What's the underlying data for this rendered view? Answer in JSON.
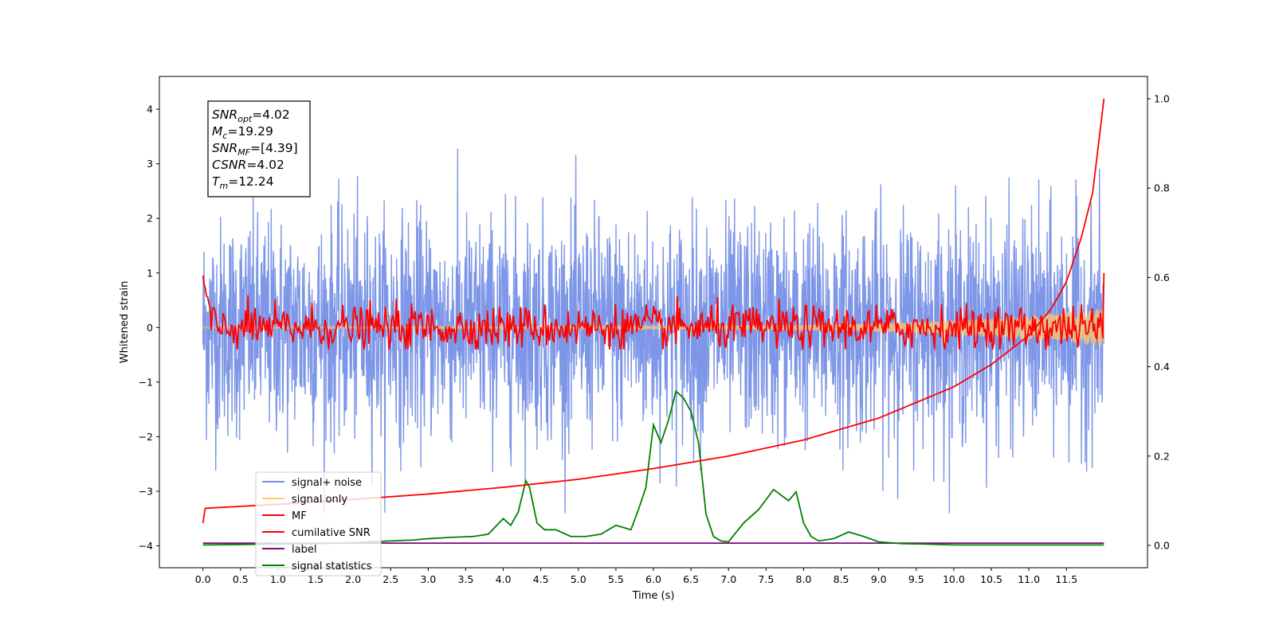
{
  "chart_data": {
    "type": "line",
    "xlabel": "Time (s)",
    "ylabel": "Whitened strain",
    "xlim": [
      -0.58,
      12.58
    ],
    "ylim_left": [
      -4.4,
      4.6
    ],
    "ylim_right": [
      -0.05,
      1.05
    ],
    "x_ticks": [
      "0.0",
      "0.5",
      "1.0",
      "1.5",
      "2.0",
      "2.5",
      "3.0",
      "3.5",
      "4.0",
      "4.5",
      "5.0",
      "5.5",
      "6.0",
      "6.5",
      "7.0",
      "7.5",
      "8.0",
      "8.5",
      "9.0",
      "9.5",
      "10.0",
      "10.5",
      "11.0",
      "11.5"
    ],
    "y_ticks_left": [
      4,
      3,
      2,
      1,
      0,
      -1,
      -2,
      -3,
      -4
    ],
    "y_ticks_right": [
      "0.0",
      "0.2",
      "0.4",
      "0.6",
      "0.8",
      "1.0"
    ],
    "annotation": {
      "snr_opt": "4.02",
      "mc": "19.29",
      "snr_mf": "[4.39]",
      "csnr": "4.02",
      "tm": "12.24"
    },
    "legend_placement": "lower-left",
    "series": [
      {
        "name": "signal+ noise",
        "color": "#7690e6",
        "axis": "left",
        "style": "noise",
        "x_range": [
          0,
          12
        ],
        "std": 1.0,
        "min_approx": -3.4,
        "max_approx": 4.2
      },
      {
        "name": "signal only",
        "color": "#ffc76e",
        "axis": "left",
        "style": "chirp",
        "x_range": [
          0,
          12
        ],
        "amplitude_start": 0.02,
        "amplitude_end": 0.35
      },
      {
        "name": "MF",
        "color": "#ff0000",
        "axis": "left",
        "style": "noise",
        "x_range": [
          0,
          12
        ],
        "start": 0.95,
        "std": 0.2,
        "min_approx": -0.4,
        "max_approx": 0.8,
        "end": 1.0
      },
      {
        "name": "cumilative SNR",
        "color": "#ff0000",
        "axis": "right",
        "x": [
          0.0,
          0.02,
          1,
          2,
          3,
          4,
          5,
          6,
          7,
          8,
          9,
          10,
          10.5,
          11,
          11.3,
          11.5,
          11.7,
          11.85,
          12.0
        ],
        "y": [
          0.05,
          0.083,
          0.092,
          0.103,
          0.115,
          0.13,
          0.148,
          0.172,
          0.2,
          0.236,
          0.285,
          0.355,
          0.405,
          0.47,
          0.53,
          0.59,
          0.69,
          0.79,
          1.0
        ]
      },
      {
        "name": "label",
        "color": "#7b0a7b",
        "axis": "left",
        "x": [
          0,
          12
        ],
        "y": [
          -3.95,
          -3.95
        ]
      },
      {
        "name": "signal statistics",
        "color": "#008000",
        "axis": "right",
        "x": [
          0.0,
          0.5,
          1.0,
          1.5,
          2.0,
          2.5,
          2.8,
          3.0,
          3.3,
          3.6,
          3.8,
          4.0,
          4.1,
          4.2,
          4.3,
          4.35,
          4.45,
          4.55,
          4.7,
          4.9,
          5.1,
          5.3,
          5.5,
          5.6,
          5.7,
          5.8,
          5.9,
          6.0,
          6.1,
          6.2,
          6.3,
          6.4,
          6.5,
          6.6,
          6.7,
          6.8,
          6.9,
          7.0,
          7.2,
          7.4,
          7.6,
          7.8,
          7.9,
          8.0,
          8.1,
          8.2,
          8.4,
          8.6,
          8.8,
          9.0,
          9.3,
          9.6,
          10.0,
          10.5,
          11.0,
          11.5,
          12.0
        ],
        "y": [
          0.001,
          0.002,
          0.003,
          0.004,
          0.006,
          0.01,
          0.012,
          0.015,
          0.018,
          0.02,
          0.025,
          0.06,
          0.045,
          0.075,
          0.145,
          0.13,
          0.05,
          0.035,
          0.035,
          0.02,
          0.02,
          0.025,
          0.045,
          0.04,
          0.035,
          0.08,
          0.13,
          0.27,
          0.23,
          0.28,
          0.345,
          0.33,
          0.3,
          0.23,
          0.07,
          0.02,
          0.01,
          0.008,
          0.05,
          0.08,
          0.125,
          0.1,
          0.12,
          0.05,
          0.02,
          0.01,
          0.015,
          0.03,
          0.02,
          0.008,
          0.004,
          0.003,
          0.001,
          0.001,
          0.001,
          0.001,
          0.001
        ]
      }
    ]
  }
}
